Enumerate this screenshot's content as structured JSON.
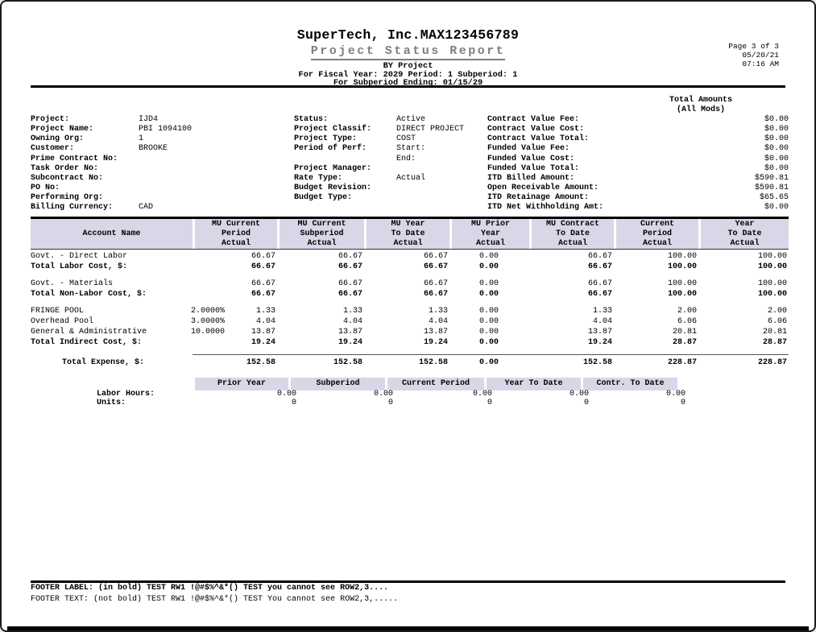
{
  "header": {
    "company": "SuperTech, Inc.MAX123456789",
    "title": "Project Status Report",
    "by_line": "BY Project",
    "fiscal_line": "For Fiscal Year: 2029 Period: 1 Subperiod: 1",
    "ending_line": "For Subperiod Ending: 01/15/29",
    "page": "Page 3 of 3",
    "date": "05/20/21",
    "time": "07:16 AM"
  },
  "totals_header": {
    "line1": "Total Amounts",
    "line2": "(All Mods)"
  },
  "info_left": [
    {
      "label": "Project:",
      "value": "IJD4"
    },
    {
      "label": "Project Name:",
      "value": "PBI 1094100"
    },
    {
      "label": "Owning Org:",
      "value": "1"
    },
    {
      "label": "Customer:",
      "value": "BROOKE"
    },
    {
      "label": "Prime Contract No:",
      "value": ""
    },
    {
      "label": "Task Order No:",
      "value": ""
    },
    {
      "label": "Subcontract No:",
      "value": ""
    },
    {
      "label": "PO No:",
      "value": ""
    },
    {
      "label": "Performing Org:",
      "value": ""
    },
    {
      "label": "Billing Currency:",
      "value": "CAD"
    }
  ],
  "info_middle": [
    {
      "label": "Status:",
      "value": "Active"
    },
    {
      "label": "Project Classif:",
      "value": "DIRECT PROJECT"
    },
    {
      "label": "Project Type:",
      "value": "COST"
    },
    {
      "label": "Period of Perf:",
      "value": "Start:"
    },
    {
      "label": "",
      "value": "End:"
    },
    {
      "label": "Project Manager:",
      "value": ""
    },
    {
      "label": "Rate Type:",
      "value": "Actual"
    },
    {
      "label": "Budget Revision:",
      "value": ""
    },
    {
      "label": "Budget Type:",
      "value": ""
    }
  ],
  "info_right": [
    {
      "label": "Contract Value Fee:",
      "value": "$0.00"
    },
    {
      "label": "Contract Value Cost:",
      "value": "$0.00"
    },
    {
      "label": "Contract Value Total:",
      "value": "$0.00"
    },
    {
      "label": "Funded Value Fee:",
      "value": "$0.00"
    },
    {
      "label": "Funded Value Cost:",
      "value": "$0.00"
    },
    {
      "label": "Funded Value Total:",
      "value": "$0.00"
    },
    {
      "label": "ITD Billed Amount:",
      "value": "$590.81"
    },
    {
      "label": "Open Receivable Amount:",
      "value": "$590.81"
    },
    {
      "label": "ITD Retainage Amount:",
      "value": "$65.65"
    },
    {
      "label": "ITD Net Withholding Amt:",
      "value": "$0.00"
    }
  ],
  "cost_table": {
    "headers": [
      "Account Name",
      "MU Current\nPeriod\nActual",
      "MU Current\nSubperiod\nActual",
      "MU Year\nTo Date\nActual",
      "MU Prior\nYear\nActual",
      "MU Contract\nTo Date\nActual",
      "Current\nPeriod\nActual",
      "Year\nTo Date\nActual"
    ],
    "rows": [
      {
        "name": "Govt. - Direct Labor",
        "rate": "",
        "values": [
          "66.67",
          "66.67",
          "66.67",
          "0.00",
          "66.67",
          "100.00",
          "100.00"
        ]
      },
      {
        "name": "Total Labor Cost, $:",
        "rate": "",
        "values": [
          "66.67",
          "66.67",
          "66.67",
          "0.00",
          "66.67",
          "100.00",
          "100.00"
        ]
      },
      {
        "name": "Govt. - Materials",
        "rate": "",
        "values": [
          "66.67",
          "66.67",
          "66.67",
          "0.00",
          "66.67",
          "100.00",
          "100.00"
        ]
      },
      {
        "name": "Total Non-Labor Cost, $:",
        "rate": "",
        "values": [
          "66.67",
          "66.67",
          "66.67",
          "0.00",
          "66.67",
          "100.00",
          "100.00"
        ]
      },
      {
        "name": "FRINGE POOL",
        "rate": "2.0000%",
        "values": [
          "1.33",
          "1.33",
          "1.33",
          "0.00",
          "1.33",
          "2.00",
          "2.00"
        ]
      },
      {
        "name": "Overhead Pool",
        "rate": "3.0000%",
        "values": [
          "4.04",
          "4.04",
          "4.04",
          "0.00",
          "4.04",
          "6.06",
          "6.06"
        ]
      },
      {
        "name": "General & Administrative",
        "rate": "10.0000",
        "values": [
          "13.87",
          "13.87",
          "13.87",
          "0.00",
          "13.87",
          "20.81",
          "20.81"
        ]
      },
      {
        "name": "Total Indirect Cost, $:",
        "rate": "",
        "values": [
          "19.24",
          "19.24",
          "19.24",
          "0.00",
          "19.24",
          "28.87",
          "28.87"
        ]
      }
    ],
    "grand_total": {
      "name": "Total Expense, $:",
      "values": [
        "152.58",
        "152.58",
        "152.58",
        "0.00",
        "152.58",
        "228.87",
        "228.87"
      ]
    }
  },
  "hours_table": {
    "headers": [
      "Prior Year",
      "Subperiod",
      "Current Period",
      "Year To Date",
      "Contr. To Date"
    ],
    "rows": [
      {
        "label": "Labor Hours:",
        "values": [
          "0.00",
          "0.00",
          "0.00",
          "0.00",
          "0.00"
        ]
      },
      {
        "label": "Units:",
        "values": [
          "0",
          "0",
          "0",
          "0",
          "0"
        ]
      }
    ]
  },
  "footer": {
    "label_line": "FOOTER LABEL: (in bold) TEST RW1 !@#$%^&*() TEST you cannot see ROW2,3....",
    "text_line": "FOOTER TEXT: (not bold) TEST RW1 !@#$%^&*() TEST You cannot see ROW2,3,....."
  },
  "colors": {
    "table_header_bg": "#d7d7e7",
    "title_gray": "#7f7f7f"
  }
}
